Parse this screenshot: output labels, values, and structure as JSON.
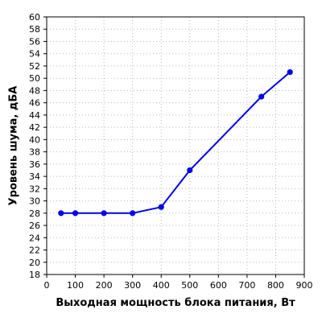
{
  "chart_data": {
    "type": "line",
    "xlabel": "Выходная мощность блока питания, Вт",
    "ylabel": "Уровень шума, дБА",
    "xlim": [
      0,
      900
    ],
    "ylim": [
      18,
      60
    ],
    "x_ticks": [
      0,
      100,
      200,
      300,
      400,
      500,
      600,
      700,
      800,
      900
    ],
    "y_ticks": [
      18,
      20,
      22,
      24,
      26,
      28,
      30,
      32,
      34,
      36,
      38,
      40,
      42,
      44,
      46,
      48,
      50,
      52,
      54,
      56,
      58,
      60
    ],
    "grid": true,
    "series": [
      {
        "color": "#0000ee",
        "x": [
          50,
          100,
          200,
          300,
          400,
          500,
          750,
          850
        ],
        "y": [
          28,
          28,
          28,
          28,
          29,
          35,
          47,
          51
        ]
      }
    ]
  }
}
